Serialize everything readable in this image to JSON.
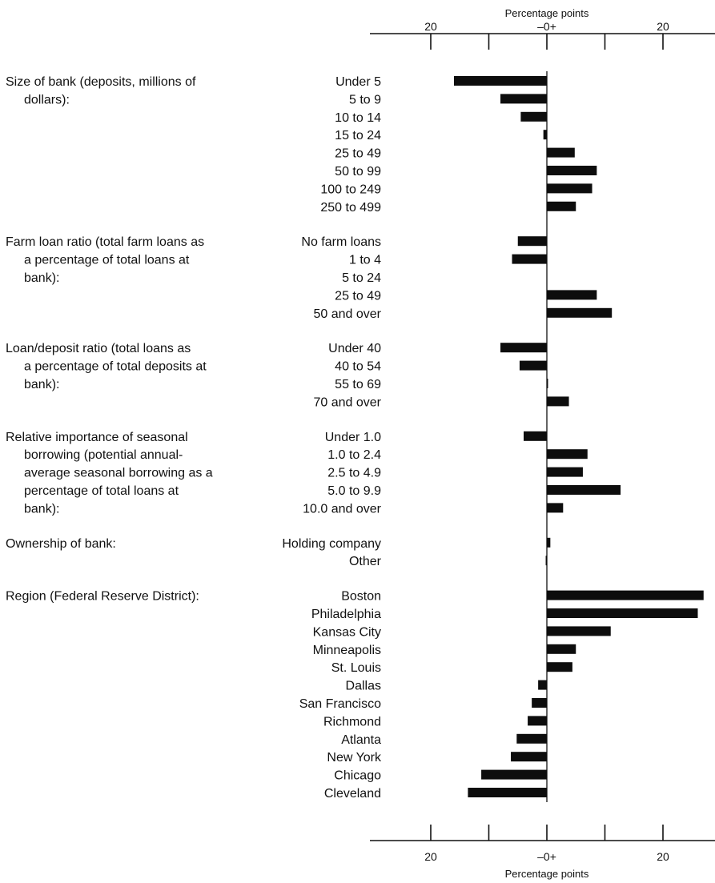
{
  "chart_data": {
    "type": "bar",
    "orientation": "horizontal",
    "xlabel": "Percentage points",
    "xlim": [
      -30,
      27
    ],
    "x_ticks": [
      -20,
      -10,
      0,
      10,
      20
    ],
    "x_tick_labels": [
      "20",
      "",
      "–0+",
      "",
      "20"
    ],
    "groups": [
      {
        "label_lines": [
          "Size of bank (deposits, millions of",
          "dollars):"
        ],
        "categories": [
          "Under 5",
          "5 to 9",
          "10 to 14",
          "15 to 24",
          "25 to 49",
          "50 to 99",
          "100 to 249",
          "250 to 499"
        ],
        "values": [
          -16,
          -8,
          -4.5,
          -0.6,
          4.8,
          8.6,
          7.8,
          5
        ]
      },
      {
        "label_lines": [
          "Farm loan ratio (total farm loans as",
          "a percentage of total loans at",
          "bank):"
        ],
        "categories": [
          "No farm loans",
          "1 to 4",
          "5 to 24",
          "25 to 49",
          "50 and over"
        ],
        "values": [
          -5,
          -6,
          0,
          8.6,
          11.2
        ]
      },
      {
        "label_lines": [
          "Loan/deposit ratio (total loans as",
          "a percentage of total deposits at",
          "bank):"
        ],
        "categories": [
          "Under 40",
          "40 to 54",
          "55 to 69",
          "70 and over"
        ],
        "values": [
          -8,
          -4.7,
          0.2,
          3.8
        ]
      },
      {
        "label_lines": [
          "Relative importance of seasonal",
          "borrowing (potential annual-",
          "average seasonal borrowing as a",
          "percentage of total loans at",
          "bank):"
        ],
        "categories": [
          "Under 1.0",
          "1.0 to 2.4",
          "2.5 to 4.9",
          "5.0 to 9.9",
          "10.0 and over"
        ],
        "values": [
          -4,
          7,
          6.2,
          12.7,
          2.8
        ]
      },
      {
        "label_lines": [
          "Ownership of bank:"
        ],
        "categories": [
          "Holding company",
          "Other"
        ],
        "values": [
          0.6,
          -0.2
        ]
      },
      {
        "label_lines": [
          "Region (Federal Reserve District):"
        ],
        "categories": [
          "Boston",
          "Philadelphia",
          "Kansas City",
          "Minneapolis",
          "St. Louis",
          "Dallas",
          "San Francisco",
          "Richmond",
          "Atlanta",
          "New York",
          "Chicago",
          "Cleveland"
        ],
        "values": [
          27,
          26,
          11,
          5,
          4.4,
          -1.5,
          -2.6,
          -3.3,
          -5.2,
          -6.2,
          -11.3,
          -13.6
        ]
      }
    ]
  }
}
